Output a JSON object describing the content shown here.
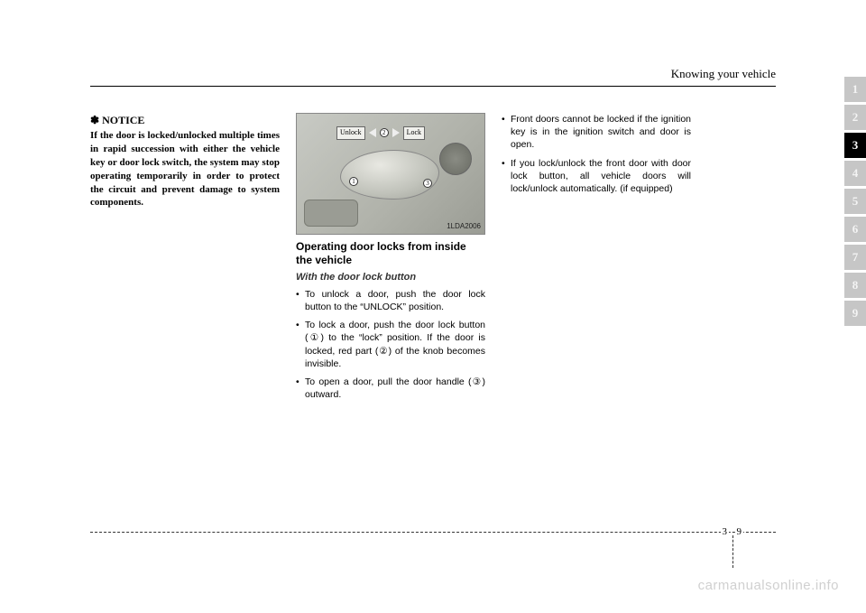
{
  "header": {
    "section_title": "Knowing your vehicle"
  },
  "col1": {
    "notice_mark": "✽",
    "notice_title": "NOTICE",
    "notice_body": "If the door is locked/unlocked multiple times in rapid succession with either the vehicle key or door lock switch, the system may stop operating temporarily in order to protect the circuit and prevent damage to system components."
  },
  "col2": {
    "figure": {
      "unlock_label": "Unlock",
      "lock_label": "Lock",
      "num1": "1",
      "num2": "2",
      "num3": "3",
      "code": "1LDA2006"
    },
    "heading": "Operating door locks from inside the vehicle",
    "subheading": "With the door lock button",
    "bullets": [
      "To unlock a door, push the door lock button to the “UNLOCK” position.",
      "To lock a door, push the door lock button (①) to the “lock” position. If the door is locked, red part (②) of the knob becomes invisible.",
      "To open a door, pull the door handle (③) outward."
    ]
  },
  "col3": {
    "bullets": [
      "Front doors cannot be locked if the ignition key is in the ignition switch and door is open.",
      "If you lock/unlock the front door with door lock button, all vehicle doors will lock/unlock automatically. (if equipped)"
    ]
  },
  "tabs": {
    "items": [
      "1",
      "2",
      "3",
      "4",
      "5",
      "6",
      "7",
      "8",
      "9"
    ],
    "active_index": 2
  },
  "footer": {
    "chapter": "3",
    "page": "9"
  },
  "watermark": "carmanualsonline.info",
  "colors": {
    "tab_inactive_bg": "#c6c6c6",
    "tab_inactive_fg": "#f4f4f4",
    "tab_active_bg": "#000000",
    "tab_active_fg": "#ffffff",
    "watermark": "#d0d0d0"
  }
}
